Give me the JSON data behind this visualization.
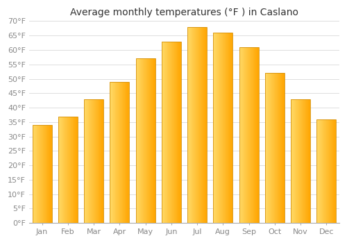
{
  "title": "Average monthly temperatures (°F ) in Caslano",
  "months": [
    "Jan",
    "Feb",
    "Mar",
    "Apr",
    "May",
    "Jun",
    "Jul",
    "Aug",
    "Sep",
    "Oct",
    "Nov",
    "Dec"
  ],
  "values": [
    34,
    37,
    43,
    49,
    57,
    63,
    68,
    66,
    61,
    52,
    43,
    36
  ],
  "bar_color_left": "#FFD966",
  "bar_color_right": "#FFA500",
  "bar_edge_color": "#D4900A",
  "background_color": "#FFFFFF",
  "plot_bg_color": "#FFFFFF",
  "grid_color": "#DDDDDD",
  "ylim": [
    0,
    70
  ],
  "ytick_step": 5,
  "title_fontsize": 10,
  "tick_fontsize": 8,
  "tick_color": "#888888"
}
